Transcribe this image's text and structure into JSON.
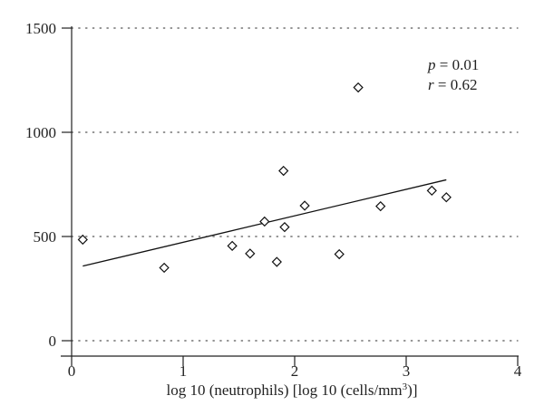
{
  "chart_data": {
    "type": "scatter",
    "xlabel": {
      "prefix": "log 10 (neutrophils) [log 10 (cells/mm",
      "superscript": "3",
      "suffix": ")]"
    },
    "ylabel": "",
    "xlim": [
      0,
      4
    ],
    "ylim": [
      0,
      1500
    ],
    "xticks": [
      0,
      1,
      2,
      3,
      4
    ],
    "yticks": [
      0,
      500,
      1000,
      1500
    ],
    "grid": "horizontal dotted",
    "marker": "diamond",
    "points": [
      {
        "x": 0.1,
        "y": 485
      },
      {
        "x": 0.83,
        "y": 350
      },
      {
        "x": 1.44,
        "y": 455
      },
      {
        "x": 1.6,
        "y": 418
      },
      {
        "x": 1.73,
        "y": 572
      },
      {
        "x": 1.84,
        "y": 378
      },
      {
        "x": 1.9,
        "y": 815
      },
      {
        "x": 1.91,
        "y": 545
      },
      {
        "x": 2.09,
        "y": 648
      },
      {
        "x": 2.4,
        "y": 415
      },
      {
        "x": 2.57,
        "y": 1215
      },
      {
        "x": 2.77,
        "y": 645
      },
      {
        "x": 3.23,
        "y": 720
      },
      {
        "x": 3.36,
        "y": 688
      }
    ],
    "trendline": {
      "x": [
        0.1,
        3.36
      ],
      "y": [
        358,
        772
      ]
    },
    "annotations": [
      {
        "var": "p",
        "text": " = 0.01"
      },
      {
        "var": "r",
        "text": " = 0.62"
      }
    ]
  }
}
